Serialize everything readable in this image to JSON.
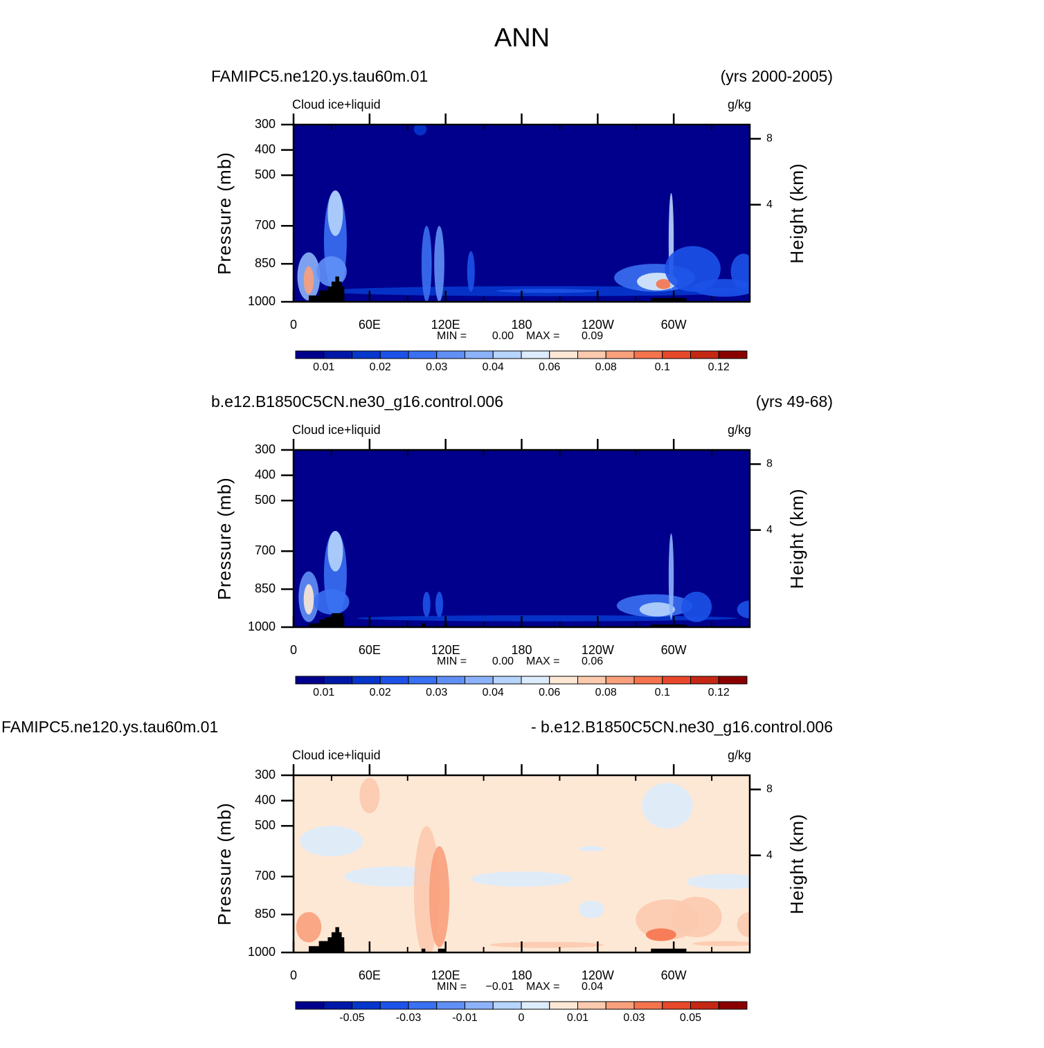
{
  "title": "ANN",
  "chart_data": [
    {
      "type": "contour",
      "case_left": "FAMIPC5.ne120.ys.tau60m.01",
      "case_right": "(yrs 2000-2005)",
      "variable": "Cloud ice+liquid",
      "units": "g/kg",
      "ylabel": "Pressure (mb)",
      "y2label": "Height (km)",
      "xlim": [
        0,
        360
      ],
      "xticks": [
        0,
        {
          "value": 60,
          "label": "60E"
        },
        {
          "value": 120,
          "label": "120E"
        },
        180,
        {
          "value": 240,
          "label": "120W"
        },
        {
          "value": 300,
          "label": "60W"
        }
      ],
      "xminorticks": [
        30,
        90,
        150,
        210,
        270,
        330
      ],
      "ylim": [
        1000,
        300
      ],
      "yticks": [
        300,
        400,
        500,
        700,
        850,
        1000
      ],
      "y2ticks": [
        8,
        4
      ],
      "min_text": "MIN =",
      "min": {
        "value": 0,
        "label": "0.00"
      },
      "max_text": "MAX =",
      "max": 0.09,
      "colorbar": {
        "colors": [
          "#00008c",
          "#0018a8",
          "#0636cc",
          "#1c52e8",
          "#3a70f2",
          "#6090f6",
          "#8cb2fa",
          "#b6d4fc",
          "#dcecfc",
          "#fde8d6",
          "#fccaae",
          "#faa07c",
          "#f5744e",
          "#e8482a",
          "#c42814",
          "#8a0000"
        ],
        "levels": [
          0.01,
          null,
          0.02,
          null,
          0.03,
          null,
          0.04,
          null,
          0.06,
          null,
          0.08,
          null,
          0.1,
          null,
          0.12
        ]
      }
    },
    {
      "type": "contour",
      "case_left": "b.e12.B1850C5CN.ne30_g16.control.006",
      "case_right": "(yrs 49-68)",
      "variable": "Cloud ice+liquid",
      "units": "g/kg",
      "ylabel": "Pressure (mb)",
      "y2label": "Height (km)",
      "xlim": [
        0,
        360
      ],
      "xticks": [
        0,
        {
          "value": 60,
          "label": "60E"
        },
        {
          "value": 120,
          "label": "120E"
        },
        180,
        {
          "value": 240,
          "label": "120W"
        },
        {
          "value": 300,
          "label": "60W"
        }
      ],
      "xminorticks": [
        30,
        90,
        150,
        210,
        270,
        330
      ],
      "ylim": [
        1000,
        300
      ],
      "yticks": [
        300,
        400,
        500,
        700,
        850,
        1000
      ],
      "y2ticks": [
        8,
        4
      ],
      "min_text": "MIN =",
      "min": {
        "value": 0,
        "label": "0.00"
      },
      "max_text": "MAX =",
      "max": 0.06,
      "colorbar": {
        "colors": [
          "#00008c",
          "#0018a8",
          "#0636cc",
          "#1c52e8",
          "#3a70f2",
          "#6090f6",
          "#8cb2fa",
          "#b6d4fc",
          "#dcecfc",
          "#fde8d6",
          "#fccaae",
          "#faa07c",
          "#f5744e",
          "#e8482a",
          "#c42814",
          "#8a0000"
        ],
        "levels": [
          0.01,
          null,
          0.02,
          null,
          0.03,
          null,
          0.04,
          null,
          0.06,
          null,
          0.08,
          null,
          0.1,
          null,
          0.12
        ]
      }
    },
    {
      "type": "contour",
      "case_left": "FAMIPC5.ne120.ys.tau60m.01",
      "case_right": "- b.e12.B1850C5CN.ne30_g16.control.006",
      "variable": "Cloud ice+liquid",
      "units": "g/kg",
      "ylabel": "Pressure (mb)",
      "y2label": "Height (km)",
      "xlim": [
        0,
        360
      ],
      "xticks": [
        0,
        {
          "value": 60,
          "label": "60E"
        },
        {
          "value": 120,
          "label": "120E"
        },
        180,
        {
          "value": 240,
          "label": "120W"
        },
        {
          "value": 300,
          "label": "60W"
        }
      ],
      "xminorticks": [
        30,
        90,
        150,
        210,
        270,
        330
      ],
      "ylim": [
        1000,
        300
      ],
      "yticks": [
        300,
        400,
        500,
        700,
        850,
        1000
      ],
      "y2ticks": [
        8,
        4
      ],
      "min_text": "MIN =",
      "min": {
        "value": -0.01,
        "label": "−0.01"
      },
      "max_text": "MAX =",
      "max": 0.04,
      "colorbar": {
        "colors": [
          "#00008c",
          "#0018a8",
          "#0636cc",
          "#1c52e8",
          "#3a70f2",
          "#6090f6",
          "#8cb2fa",
          "#b6d4fc",
          "#dcecfc",
          "#fde8d6",
          "#fccaae",
          "#faa07c",
          "#f5744e",
          "#e8482a",
          "#c42814",
          "#8a0000"
        ],
        "levels": [
          null,
          -0.05,
          null,
          -0.03,
          null,
          -0.01,
          null,
          0,
          null,
          0.01,
          null,
          0.03,
          null,
          0.05,
          null
        ]
      }
    }
  ]
}
